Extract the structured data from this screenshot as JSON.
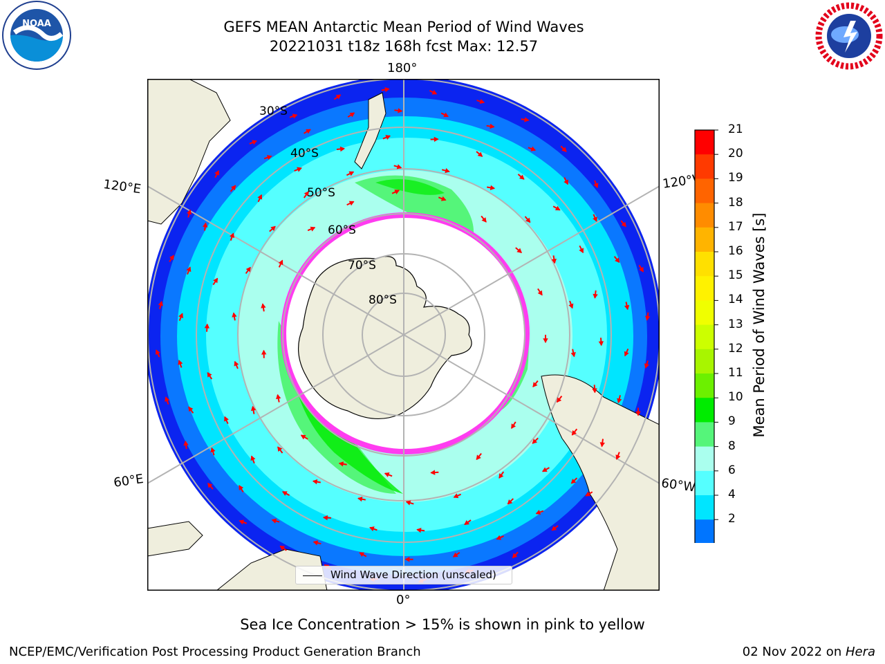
{
  "title": {
    "line1": "GEFS MEAN Antarctic Mean Period of Wind Waves",
    "line2": "20221031 t18z 168h fcst   Max: 12.57"
  },
  "logos": {
    "left": "NOAA",
    "right": "National Weather Service"
  },
  "map": {
    "projection": "south-polar-stereographic",
    "longitude_labels": {
      "top": "180°",
      "bottom": "0°",
      "upper_left": "120°E",
      "lower_left": "60°E",
      "upper_right": "120°W",
      "lower_right": "60°W"
    },
    "latitude_labels": [
      "30°S",
      "40°S",
      "50°S",
      "60°S",
      "70°S",
      "80°S"
    ],
    "legend": "Wind Wave Direction (unscaled)",
    "colors": {
      "land": "#efeedd",
      "ice_edge": "#ff3cf0",
      "arrows": "#ff0000",
      "grid": "#b3b3b3"
    }
  },
  "colorbar": {
    "label": "Mean Period of Wind Waves [s]",
    "ticks": [
      "21",
      "20",
      "19",
      "18",
      "17",
      "16",
      "15",
      "14",
      "13",
      "12",
      "11",
      "10",
      "9",
      "8",
      "6",
      "4",
      "2"
    ],
    "colors": [
      "#ff0000",
      "#ff3a00",
      "#ff6400",
      "#ff8c00",
      "#ffb400",
      "#ffe000",
      "#fff200",
      "#f0ff00",
      "#ccff00",
      "#a8f500",
      "#6cf000",
      "#00ec00",
      "#55f57a",
      "#aaffee",
      "#55ffff",
      "#00e5ff",
      "#0075ff"
    ],
    "extend_min_color": "#0000ff"
  },
  "footer": {
    "note": "Sea Ice Concentration > 15% is shown in pink to yellow",
    "left": "NCEP/EMC/Verification Post Processing Product Generation Branch",
    "right_date": "02 Nov 2022 on ",
    "right_host": "Hera"
  }
}
